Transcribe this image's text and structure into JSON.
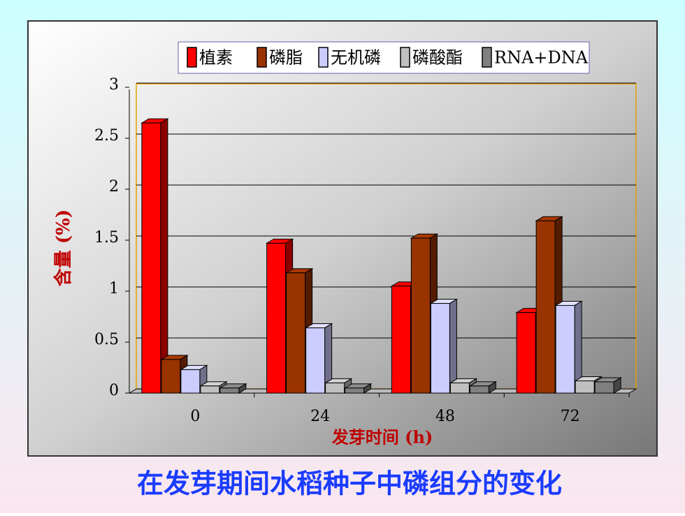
{
  "chart_data": {
    "type": "bar3d",
    "caption": "在发芽期间水稻种子中磷组分的变化",
    "xlabel": "发芽时间 (h)",
    "ylabel": "含量 (%)",
    "categories": [
      "0",
      "24",
      "48",
      "72"
    ],
    "series": [
      {
        "name": "植素",
        "color": "#ff0000",
        "values": [
          2.65,
          1.47,
          1.05,
          0.79
        ]
      },
      {
        "name": "磷脂",
        "color": "#993300",
        "values": [
          0.33,
          1.18,
          1.52,
          1.69
        ]
      },
      {
        "name": "无机磷",
        "color": "#ccccff",
        "values": [
          0.23,
          0.64,
          0.88,
          0.86
        ]
      },
      {
        "name": "磷酸酯",
        "color": "#c0c0c0",
        "values": [
          0.07,
          0.1,
          0.1,
          0.12
        ]
      },
      {
        "name": "RNA+DNA",
        "color": "#808080",
        "values": [
          0.05,
          0.05,
          0.07,
          0.11
        ]
      }
    ],
    "ylim": [
      0,
      3
    ],
    "yticks": [
      0,
      0.5,
      1,
      1.5,
      2,
      2.5,
      3
    ],
    "grid": true
  }
}
